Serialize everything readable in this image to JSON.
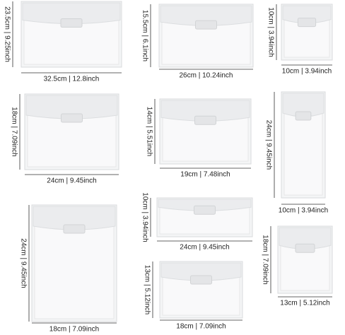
{
  "items": [
    {
      "width": "32.5cm | 12.8inch",
      "height": "23.5cm | 9.25inch"
    },
    {
      "width": "26cm | 10.24inch",
      "height": "15.5cm | 6.1inch"
    },
    {
      "width": "10cm | 3.94inch",
      "height": "10cm | 3.94inch"
    },
    {
      "width": "24cm | 9.45inch",
      "height": "18cm | 7.09inch"
    },
    {
      "width": "19cm | 7.48inch",
      "height": "14cm | 5.51inch"
    },
    {
      "width": "10cm | 3.94inch",
      "height": "24cm | 9.45inch"
    },
    {
      "width": "24cm | 9.45inch",
      "height": "10cm | 3.94inch"
    },
    {
      "width": "18cm | 7.09inch",
      "height": "24cm | 9.45inch"
    },
    {
      "width": "18cm | 7.09inch",
      "height": "13cm | 5.12inch"
    },
    {
      "width": "13cm | 5.12inch",
      "height": "18cm | 7.09inch"
    }
  ]
}
